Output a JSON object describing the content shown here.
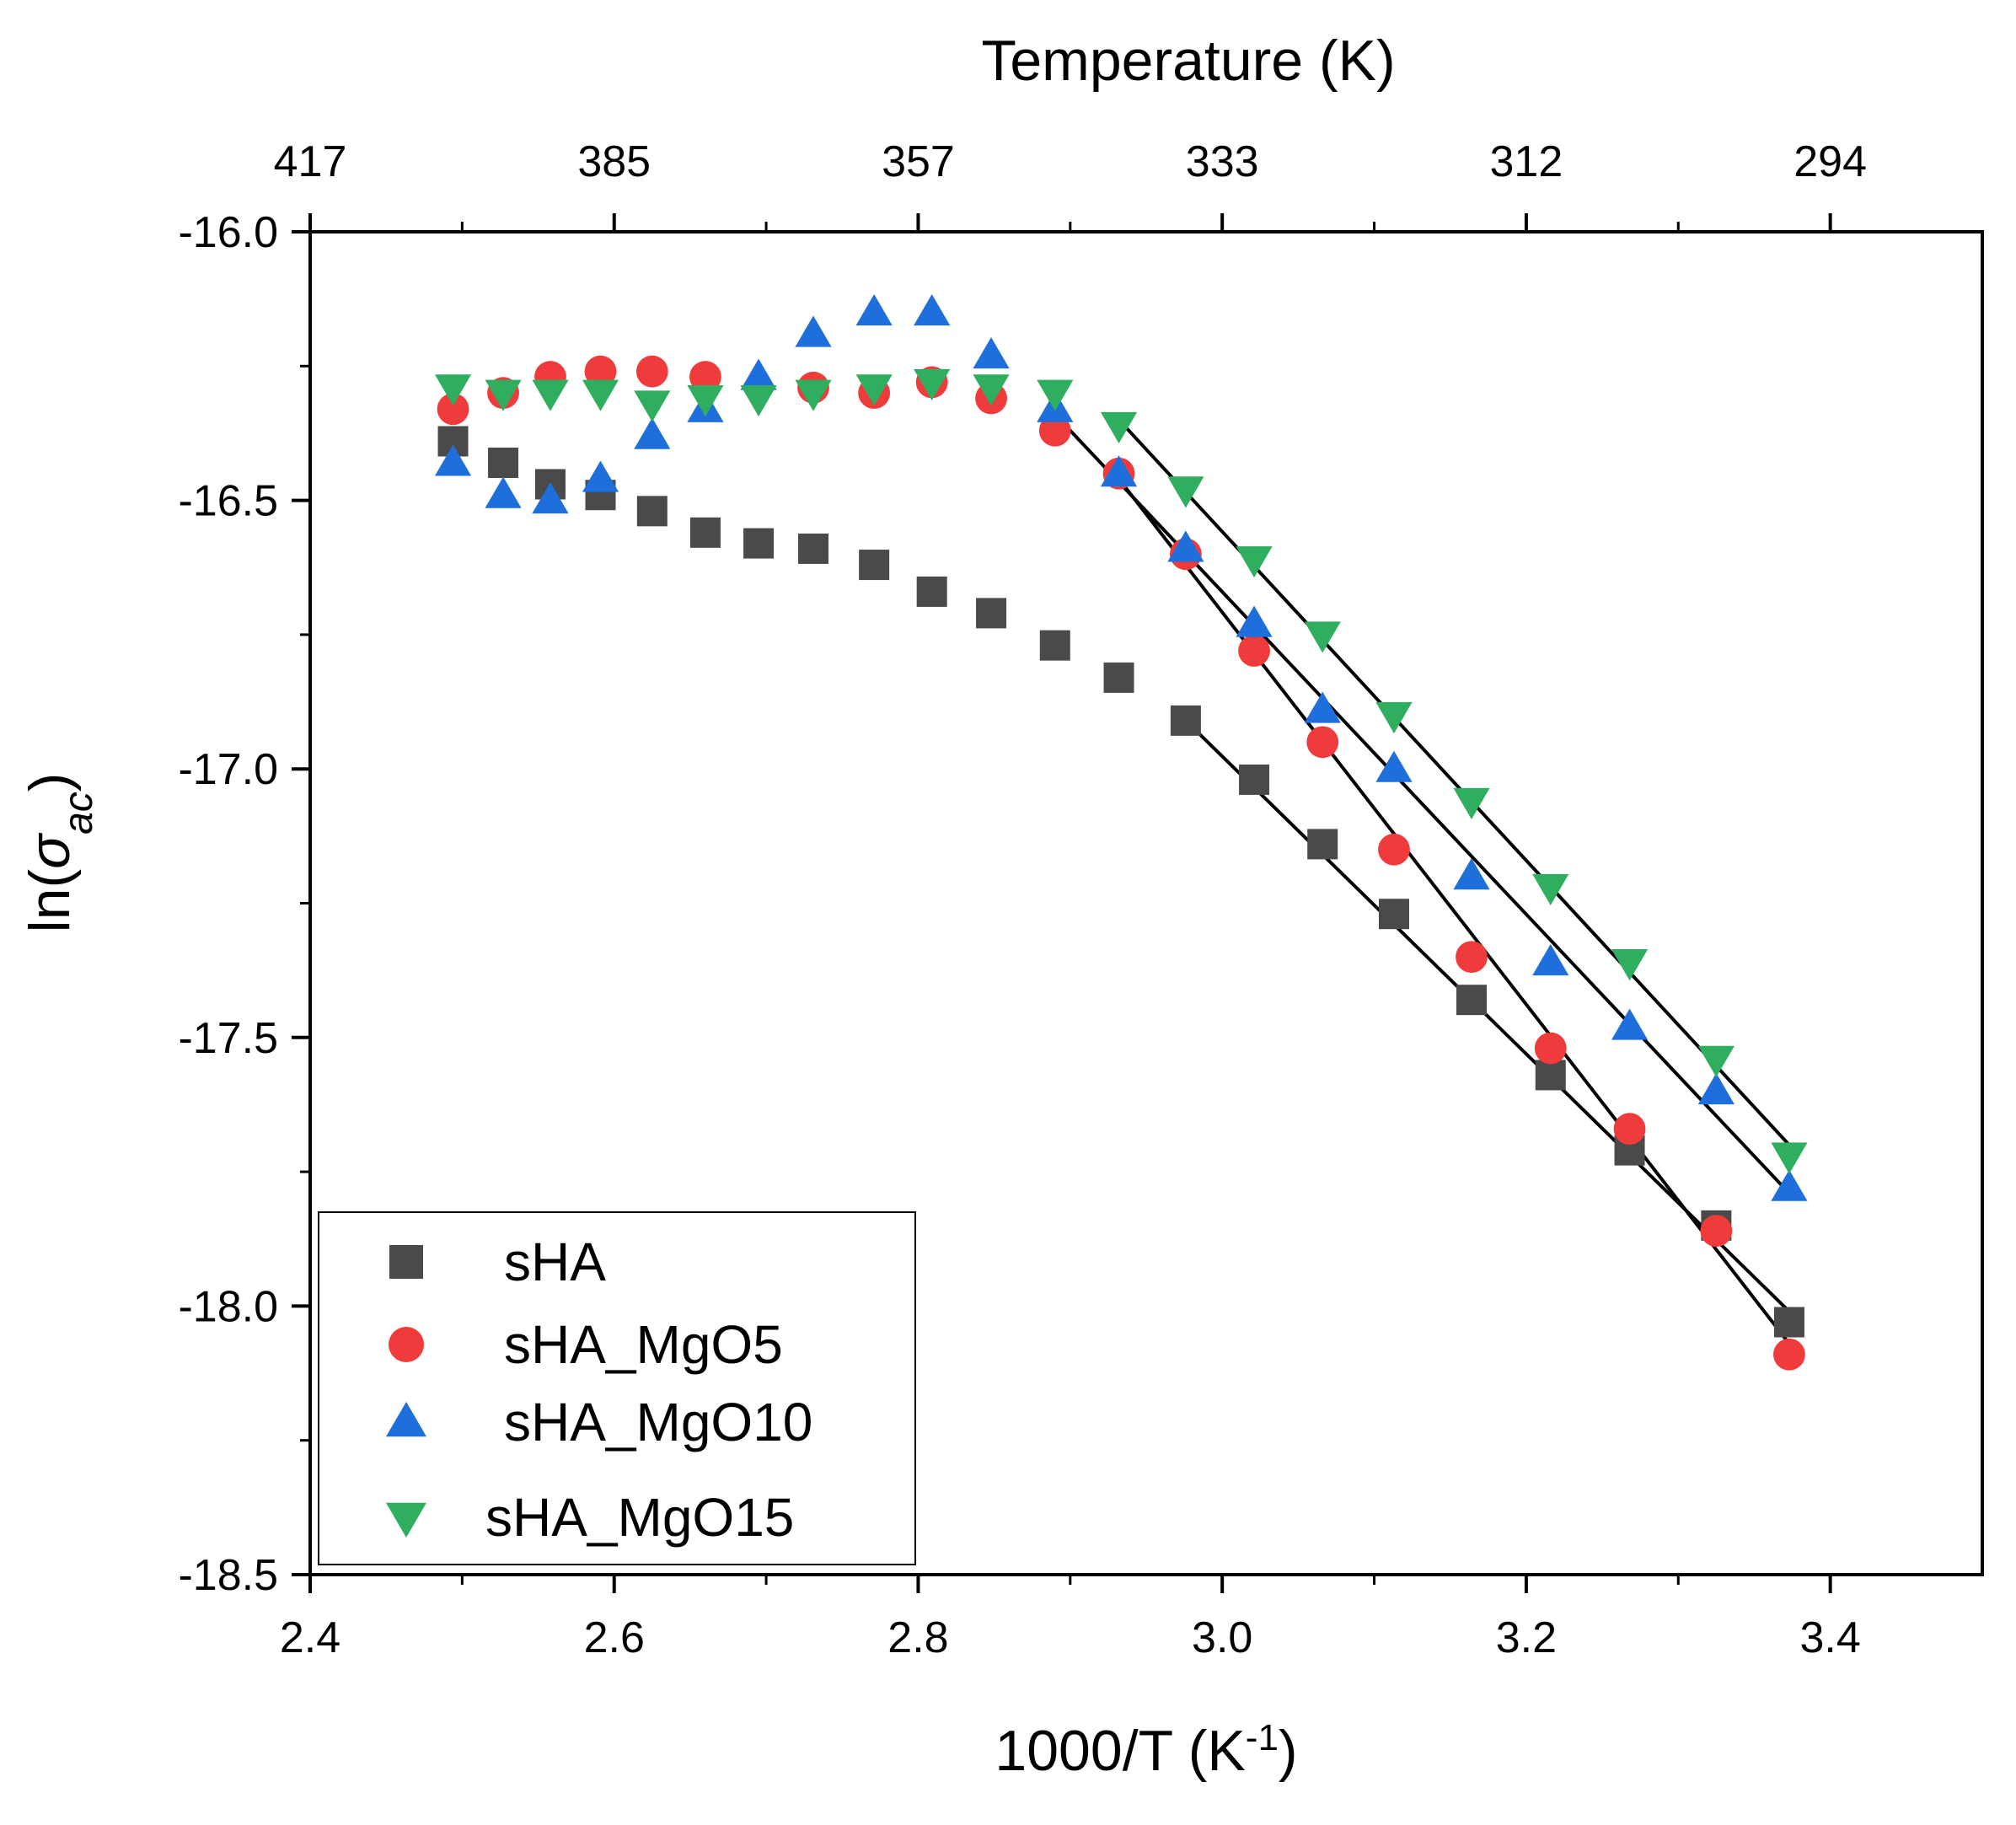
{
  "chart_data": {
    "type": "scatter",
    "title": "",
    "xlabel": "1000/T (K⁻¹)",
    "xlabel_base": "1000/T (K",
    "xlabel_sup": "-1",
    "xlabel_close": ")",
    "ylabel": "ln(σac)",
    "ylabel_prefix": "ln(",
    "ylabel_symbol": "σ",
    "ylabel_sub": "ac",
    "ylabel_suffix": ")",
    "top_axis_label": "Temperature (K)",
    "xlim": [
      2.4,
      3.5
    ],
    "ylim": [
      -18.5,
      -16.0
    ],
    "x_ticks": [
      2.4,
      2.6,
      2.8,
      3.0,
      3.2,
      3.4
    ],
    "x_tick_labels": [
      "2.4",
      "2.6",
      "2.8",
      "3.0",
      "3.2",
      "3.4"
    ],
    "y_ticks": [
      -16.0,
      -16.5,
      -17.0,
      -17.5,
      -18.0,
      -18.5
    ],
    "y_tick_labels": [
      "-16.0",
      "-16.5",
      "-17.0",
      "-17.5",
      "-18.0",
      "-18.5"
    ],
    "top_ticks_x": [
      2.4,
      2.6,
      2.8,
      3.0,
      3.2,
      3.4
    ],
    "top_tick_labels": [
      "417",
      "385",
      "357",
      "333",
      "312",
      "294"
    ],
    "legend_position": "bottom-left",
    "colors": {
      "sHA": "#4a4a4a",
      "sHA_MgO5": "#ef3b3b",
      "sHA_MgO10": "#1e6fdc",
      "sHA_MgO15": "#2fae5f",
      "fit": "#000000"
    },
    "series": [
      {
        "name": "sHA",
        "marker": "square",
        "x": [
          2.494,
          2.527,
          2.558,
          2.591,
          2.625,
          2.66,
          2.695,
          2.731,
          2.771,
          2.809,
          2.848,
          2.89,
          2.932,
          2.976,
          3.021,
          3.066,
          3.113,
          3.164,
          3.216,
          3.268,
          3.325,
          3.373
        ],
        "y": [
          -16.39,
          -16.43,
          -16.47,
          -16.49,
          -16.52,
          -16.56,
          -16.58,
          -16.59,
          -16.62,
          -16.67,
          -16.71,
          -16.77,
          -16.83,
          -16.91,
          -17.02,
          -17.14,
          -17.27,
          -17.43,
          -17.57,
          -17.71,
          -17.85,
          -18.03
        ]
      },
      {
        "name": "sHA_MgO5",
        "marker": "circle",
        "x": [
          2.494,
          2.527,
          2.558,
          2.591,
          2.625,
          2.66,
          2.731,
          2.771,
          2.809,
          2.848,
          2.89,
          2.932,
          2.976,
          3.021,
          3.066,
          3.113,
          3.164,
          3.216,
          3.268,
          3.325,
          3.373
        ],
        "y": [
          -16.33,
          -16.3,
          -16.27,
          -16.26,
          -16.26,
          -16.27,
          -16.29,
          -16.3,
          -16.28,
          -16.31,
          -16.37,
          -16.45,
          -16.6,
          -16.78,
          -16.95,
          -17.15,
          -17.35,
          -17.52,
          -17.67,
          -17.86,
          -18.09
        ]
      },
      {
        "name": "sHA_MgO10",
        "marker": "triangle-up",
        "x": [
          2.494,
          2.527,
          2.558,
          2.591,
          2.625,
          2.66,
          2.695,
          2.731,
          2.771,
          2.809,
          2.848,
          2.89,
          2.932,
          2.976,
          3.021,
          3.066,
          3.113,
          3.164,
          3.216,
          3.268,
          3.325,
          3.373
        ],
        "y": [
          -16.43,
          -16.49,
          -16.5,
          -16.46,
          -16.38,
          -16.33,
          -16.27,
          -16.19,
          -16.15,
          -16.15,
          -16.23,
          -16.33,
          -16.45,
          -16.59,
          -16.73,
          -16.89,
          -17.0,
          -17.2,
          -17.36,
          -17.48,
          -17.6,
          -17.78
        ]
      },
      {
        "name": "sHA_MgO15",
        "marker": "triangle-down",
        "x": [
          2.494,
          2.527,
          2.558,
          2.591,
          2.625,
          2.66,
          2.695,
          2.731,
          2.771,
          2.809,
          2.848,
          2.89,
          2.932,
          2.976,
          3.021,
          3.066,
          3.113,
          3.164,
          3.216,
          3.268,
          3.325,
          3.373
        ],
        "y": [
          -16.29,
          -16.3,
          -16.3,
          -16.3,
          -16.32,
          -16.31,
          -16.31,
          -16.3,
          -16.29,
          -16.28,
          -16.29,
          -16.3,
          -16.36,
          -16.48,
          -16.61,
          -16.75,
          -16.9,
          -17.06,
          -17.22,
          -17.36,
          -17.54,
          -17.72
        ]
      }
    ],
    "fit_lines": [
      {
        "series": "sHA",
        "x": [
          2.976,
          3.373
        ],
        "y": [
          -16.91,
          -18.01
        ]
      },
      {
        "series": "sHA_MgO5",
        "x": [
          2.932,
          3.373
        ],
        "y": [
          -16.46,
          -18.07
        ]
      },
      {
        "series": "sHA_MgO10",
        "x": [
          2.89,
          3.373
        ],
        "y": [
          -16.34,
          -17.79
        ]
      },
      {
        "series": "sHA_MgO15",
        "x": [
          2.932,
          3.373
        ],
        "y": [
          -16.35,
          -17.7
        ]
      }
    ]
  }
}
